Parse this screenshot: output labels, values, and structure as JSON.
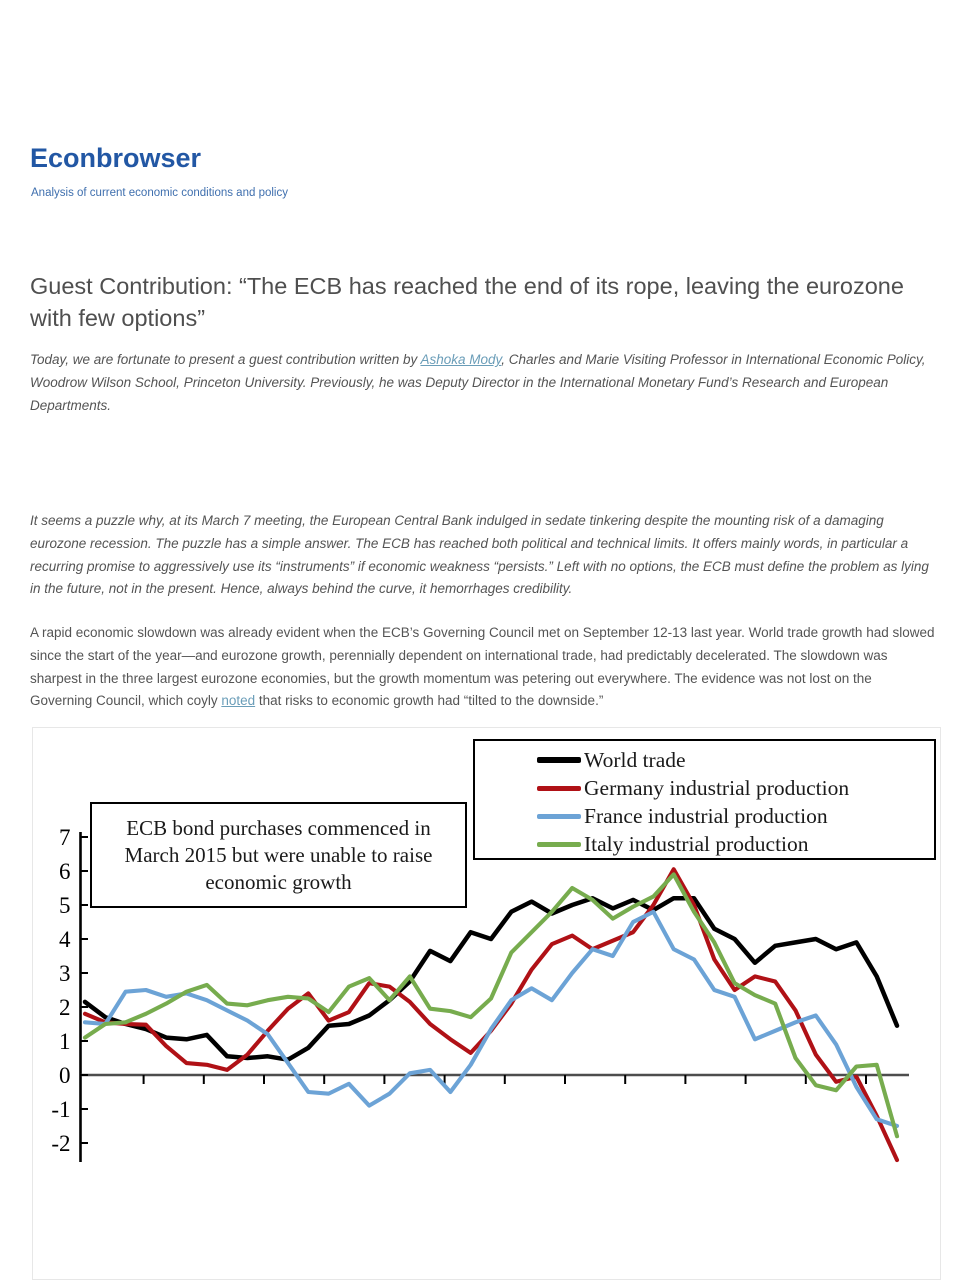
{
  "header": {
    "site_title": "Econbrowser",
    "tagline": "Analysis of current economic conditions and policy"
  },
  "article": {
    "title": "Guest Contribution: “The ECB has reached the end of its rope, leaving the eurozone with few options”",
    "intro": {
      "before": "Today, we are fortunate to present a guest contribution written by ",
      "link": "Ashoka Mody",
      "after": ", Charles and Marie Visiting Professor in International Economic Policy, Woodrow Wilson School, Princeton University. Previously, he was Deputy Director in the International Monetary Fund’s Research and European Departments."
    },
    "lede": "It seems a puzzle why, at its March 7 meeting, the European Central Bank indulged in sedate tinkering despite the mounting risk of a damaging eurozone recession. The puzzle has a simple answer. The ECB has reached both political and technical limits. It offers mainly words, in particular a recurring promise to aggressively use its “instruments” if economic weakness “persists.” Left with no options, the ECB must define the problem as lying in the future, not in the present. Hence, always behind the curve, it hemorrhages credibility.",
    "body": {
      "before": "A rapid economic slowdown was already evident when the ECB’s Governing Council met on September 12-13 last year. World trade growth had slowed since the start of the year—and eurozone growth, perennially dependent on international trade, had predictably decelerated. The slowdown was sharpest in the three largest eurozone economies, but the growth momentum was petering out everywhere. The evidence was not lost on the Governing Council, which coyly ",
      "link": "noted",
      "after": " that risks to economic growth had “tilted to the downside.”"
    }
  },
  "chart_data": {
    "type": "line",
    "title": "",
    "ylabel": "",
    "xlabel": "",
    "ylim": [
      -2.6,
      7.2
    ],
    "y_ticks": [
      7,
      6,
      5,
      4,
      3,
      2,
      1,
      0,
      -1,
      -2
    ],
    "x_ticks_count": 13,
    "x_axis_labels_visible": false,
    "grid": false,
    "legend_position": "top-right",
    "annotation": {
      "lines": [
        "ECB bond purchases commenced in",
        "March 2015 but were unable to raise",
        "economic growth"
      ]
    },
    "series": [
      {
        "name": "World trade",
        "color": "#000000",
        "values": [
          2.15,
          1.7,
          1.5,
          1.35,
          1.1,
          1.05,
          1.18,
          0.55,
          0.5,
          0.55,
          0.45,
          0.8,
          1.45,
          1.5,
          1.75,
          2.2,
          2.75,
          3.65,
          3.35,
          4.2,
          4.0,
          4.8,
          5.1,
          4.75,
          5.0,
          5.2,
          4.9,
          5.15,
          4.85,
          5.2,
          5.2,
          4.3,
          4.0,
          3.3,
          3.8,
          3.9,
          4.0,
          3.7,
          3.9,
          2.9,
          1.45
        ]
      },
      {
        "name": "Germany industrial production",
        "color": "#B01116",
        "values": [
          1.8,
          1.55,
          1.5,
          1.48,
          0.85,
          0.35,
          0.3,
          0.15,
          0.6,
          1.3,
          1.95,
          2.4,
          1.6,
          1.85,
          2.7,
          2.6,
          2.15,
          1.5,
          1.05,
          0.65,
          1.3,
          2.1,
          3.1,
          3.85,
          4.1,
          3.7,
          3.95,
          4.2,
          5.0,
          6.05,
          5.0,
          3.4,
          2.5,
          2.9,
          2.75,
          1.9,
          0.6,
          -0.2,
          -0.05,
          -1.2,
          -2.5
        ]
      },
      {
        "name": "France industrial production",
        "color": "#6CA3D6",
        "values": [
          1.55,
          1.5,
          2.45,
          2.5,
          2.3,
          2.4,
          2.2,
          1.9,
          1.6,
          1.2,
          0.35,
          -0.5,
          -0.55,
          -0.26,
          -0.9,
          -0.55,
          0.05,
          0.15,
          -0.5,
          0.3,
          1.35,
          2.2,
          2.55,
          2.2,
          3.0,
          3.7,
          3.5,
          4.5,
          4.8,
          3.7,
          3.4,
          2.5,
          2.3,
          1.05,
          1.3,
          1.55,
          1.75,
          0.9,
          -0.35,
          -1.3,
          -1.5
        ]
      },
      {
        "name": "Italy industrial production",
        "color": "#77AC4E",
        "values": [
          1.1,
          1.5,
          1.55,
          1.8,
          2.1,
          2.45,
          2.65,
          2.1,
          2.05,
          2.2,
          2.3,
          2.25,
          1.85,
          2.6,
          2.85,
          2.2,
          2.9,
          1.95,
          1.88,
          1.7,
          2.25,
          3.6,
          4.2,
          4.8,
          5.5,
          5.15,
          4.6,
          4.95,
          5.25,
          5.9,
          4.8,
          3.9,
          2.7,
          2.35,
          2.1,
          0.5,
          -0.3,
          -0.45,
          0.25,
          0.3,
          -1.8
        ]
      }
    ]
  }
}
